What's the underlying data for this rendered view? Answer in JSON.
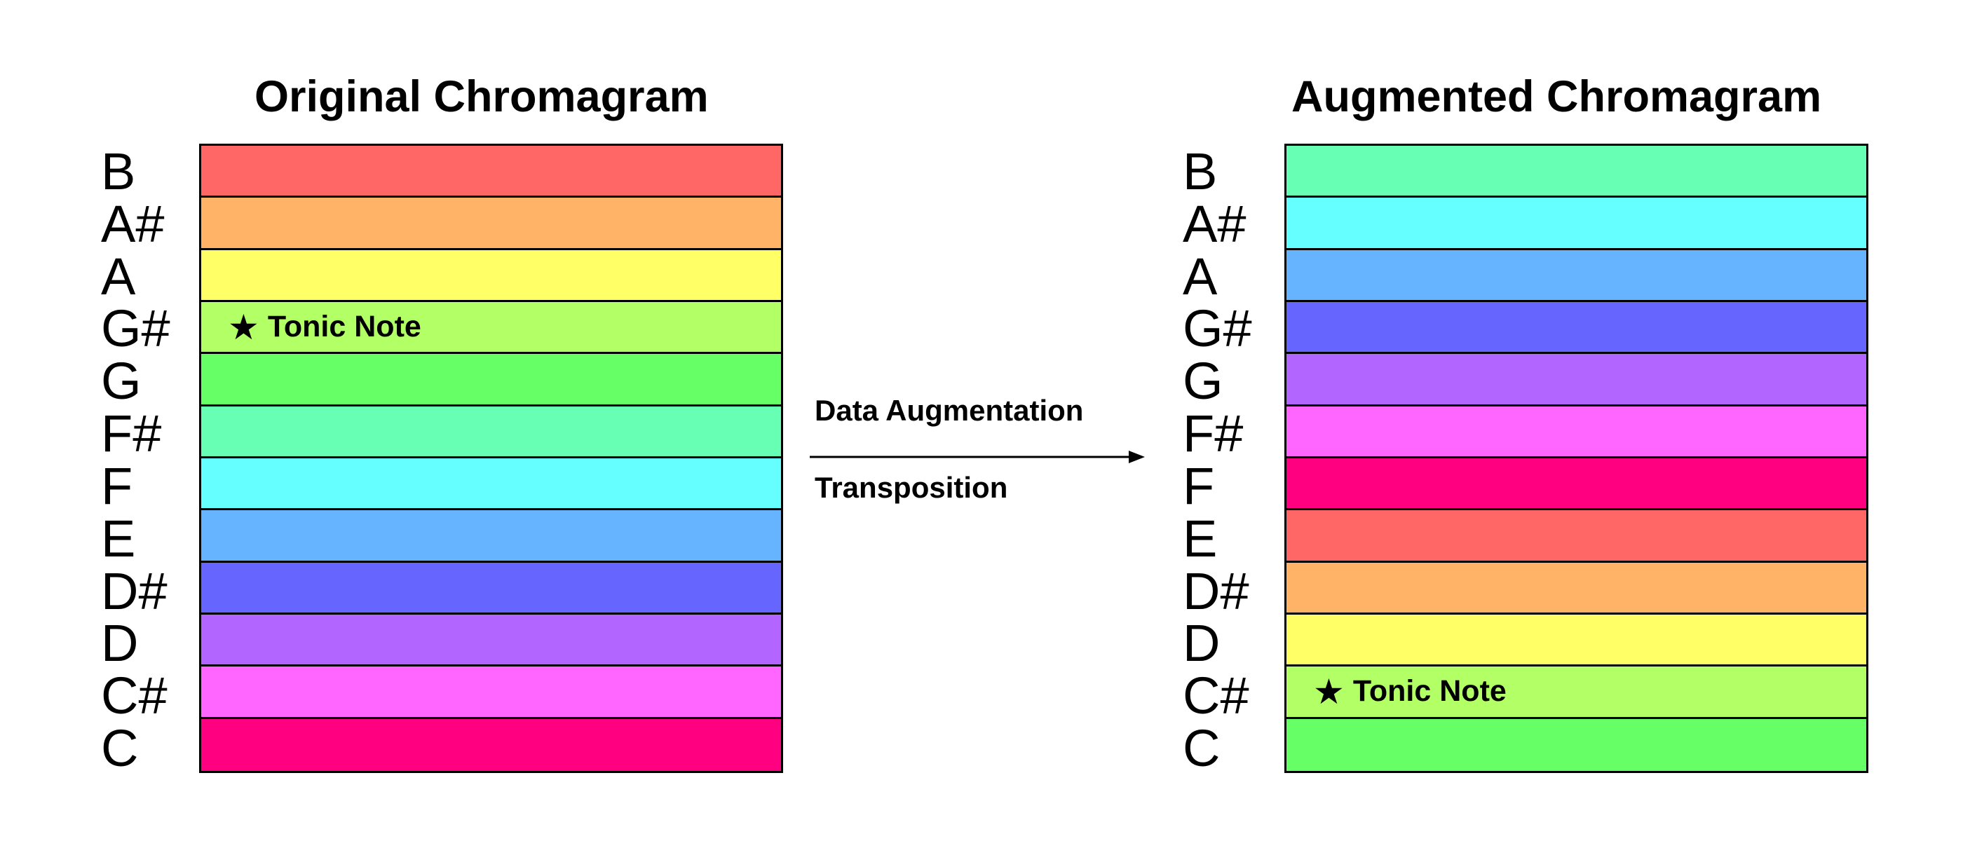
{
  "left": {
    "title": "Original Chromagram",
    "rows": [
      {
        "note": "B",
        "color": "#ff6666",
        "tonic": ""
      },
      {
        "note": "A#",
        "color": "#ffb366",
        "tonic": ""
      },
      {
        "note": "A",
        "color": "#ffff66",
        "tonic": ""
      },
      {
        "note": "G#",
        "color": "#b3ff66",
        "tonic": "Tonic Note"
      },
      {
        "note": "G",
        "color": "#66ff66",
        "tonic": ""
      },
      {
        "note": "F#",
        "color": "#66ffb3",
        "tonic": ""
      },
      {
        "note": "F",
        "color": "#66ffff",
        "tonic": ""
      },
      {
        "note": "E",
        "color": "#66b3ff",
        "tonic": ""
      },
      {
        "note": "D#",
        "color": "#6666ff",
        "tonic": ""
      },
      {
        "note": "D",
        "color": "#b366ff",
        "tonic": ""
      },
      {
        "note": "C#",
        "color": "#ff66ff",
        "tonic": ""
      },
      {
        "note": "C",
        "color": "#ff0080",
        "tonic": ""
      }
    ]
  },
  "right": {
    "title": "Augmented Chromagram",
    "rows": [
      {
        "note": "B",
        "color": "#66ffb3",
        "tonic": ""
      },
      {
        "note": "A#",
        "color": "#66ffff",
        "tonic": ""
      },
      {
        "note": "A",
        "color": "#66b3ff",
        "tonic": ""
      },
      {
        "note": "G#",
        "color": "#6666ff",
        "tonic": ""
      },
      {
        "note": "G",
        "color": "#b366ff",
        "tonic": ""
      },
      {
        "note": "F#",
        "color": "#ff66ff",
        "tonic": ""
      },
      {
        "note": "F",
        "color": "#ff0080",
        "tonic": ""
      },
      {
        "note": "E",
        "color": "#ff6666",
        "tonic": ""
      },
      {
        "note": "D#",
        "color": "#ffb366",
        "tonic": ""
      },
      {
        "note": "D",
        "color": "#ffff66",
        "tonic": ""
      },
      {
        "note": "C#",
        "color": "#b3ff66",
        "tonic": "Tonic Note"
      },
      {
        "note": "C",
        "color": "#66ff66",
        "tonic": ""
      }
    ]
  },
  "arrow": {
    "top_label": "Data Augmentation",
    "bottom_label": "Transposition"
  },
  "tonic_icon": "star-icon",
  "star_glyph": "★"
}
